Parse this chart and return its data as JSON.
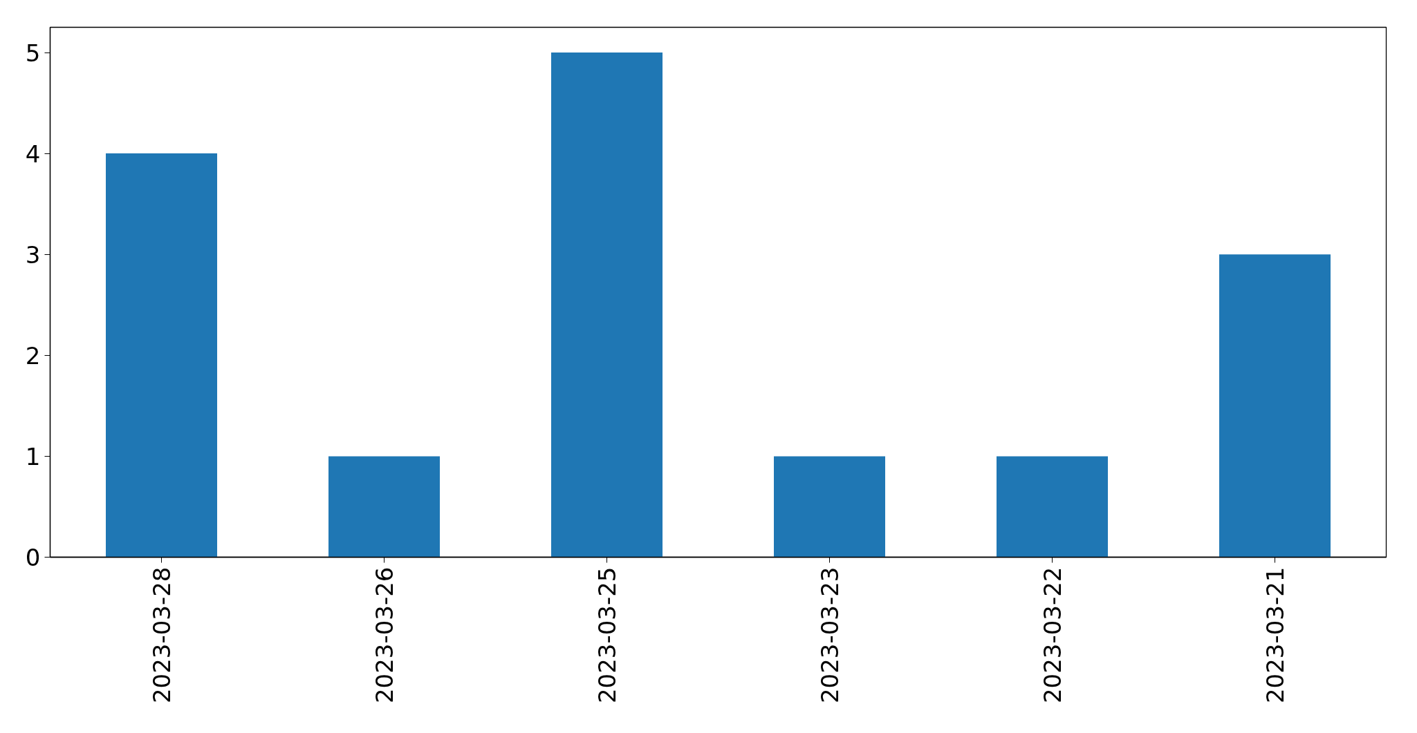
{
  "chart_data": {
    "type": "bar",
    "categories": [
      "2023-03-28",
      "2023-03-26",
      "2023-03-25",
      "2023-03-23",
      "2023-03-22",
      "2023-03-21"
    ],
    "values": [
      4,
      1,
      5,
      1,
      1,
      3
    ],
    "color": "#1f77b4",
    "ylim": [
      0,
      5.25
    ],
    "yticks": [
      0,
      1,
      2,
      3,
      4,
      5
    ]
  }
}
